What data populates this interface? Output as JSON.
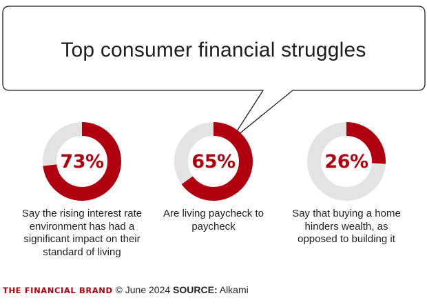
{
  "title": "Top consumer financial struggles",
  "colors": {
    "accent": "#b0000f",
    "track": "#e3e3e3",
    "text": "#1e1e1e"
  },
  "chart_data": {
    "type": "donut",
    "items": [
      {
        "value": 73,
        "label": "73%",
        "caption": "Say the rising interest rate environment has had a significant impact on their standard of living"
      },
      {
        "value": 65,
        "label": "65%",
        "caption": "Are living paycheck to paycheck"
      },
      {
        "value": 26,
        "label": "26%",
        "caption": "Say that buying a home hinders wealth, as opposed to building it"
      }
    ]
  },
  "footer": {
    "brand": "THE FINANCIAL BRAND",
    "date": "© June 2024",
    "source_label": "SOURCE:",
    "source": "Alkami"
  }
}
